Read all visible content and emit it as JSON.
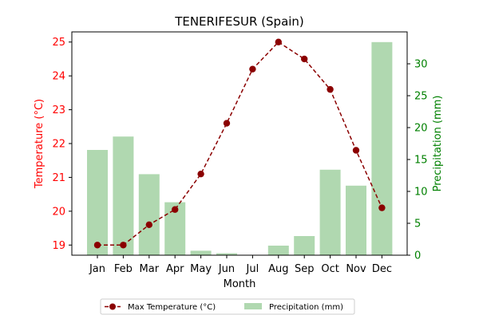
{
  "chart_data": {
    "type": "bar+line",
    "title": "TENERIFESUR (Spain)",
    "xlabel": "Month",
    "ylabel_left": "Temperature (°C)",
    "ylabel_right": "Precipitation (mm)",
    "categories": [
      "Jan",
      "Feb",
      "Mar",
      "Apr",
      "May",
      "Jun",
      "Jul",
      "Aug",
      "Sep",
      "Oct",
      "Nov",
      "Dec"
    ],
    "y_left_ticks": [
      19,
      20,
      21,
      22,
      23,
      24,
      25
    ],
    "y_right_ticks": [
      0,
      5,
      10,
      15,
      20,
      25,
      30
    ],
    "ylim_left": [
      18.7,
      25.3
    ],
    "ylim_right": [
      0,
      35
    ],
    "series": [
      {
        "name": "Max Temperature (°C)",
        "type": "line",
        "axis": "left",
        "color": "#8b0000",
        "values": [
          19.0,
          19.0,
          19.6,
          20.05,
          21.1,
          22.6,
          24.2,
          25.0,
          24.5,
          23.6,
          21.8,
          20.1
        ]
      },
      {
        "name": "Precipitation (mm)",
        "type": "bar",
        "axis": "right",
        "color": "#b0d8b0",
        "values": [
          16.5,
          18.6,
          12.7,
          8.3,
          0.7,
          0.3,
          0.0,
          1.5,
          3.0,
          13.4,
          10.9,
          33.4
        ]
      }
    ],
    "legend_placement": "bottom-center",
    "grid": false
  }
}
